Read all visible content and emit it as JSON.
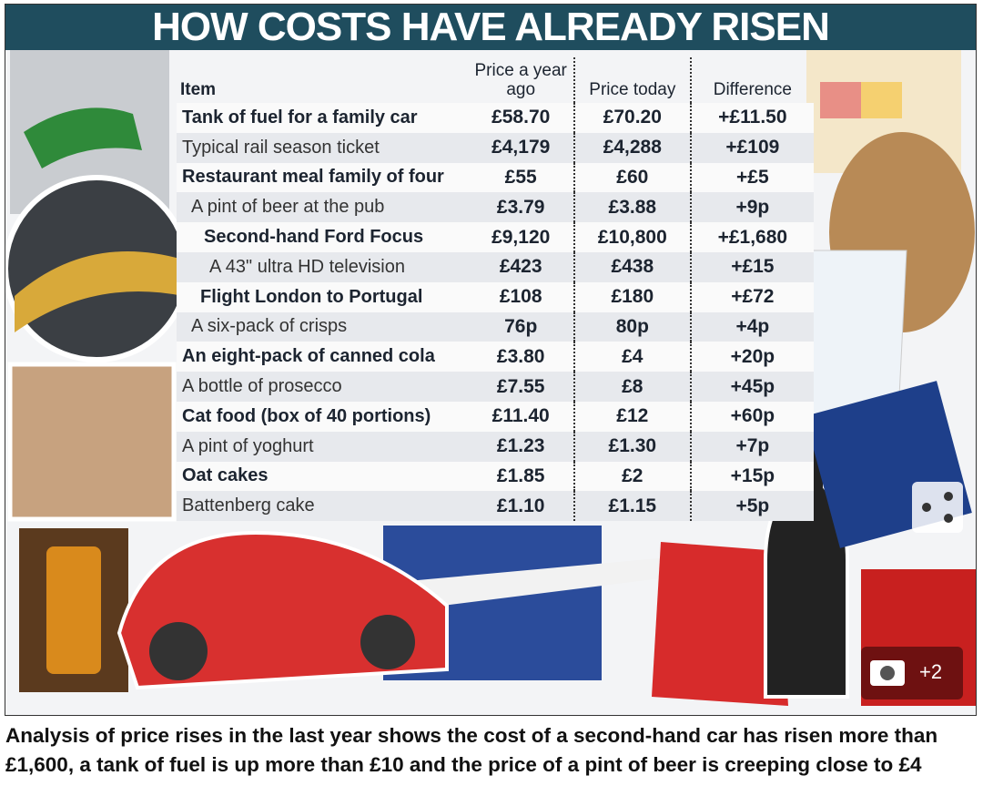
{
  "infographic": {
    "title": "HOW COSTS HAVE ALREADY RISEN",
    "columns": [
      "Item",
      "Price a year ago",
      "Price today",
      "Difference"
    ],
    "rows": [
      [
        "Tank of fuel for a family car",
        "£58.70",
        "£70.20",
        "+£11.50"
      ],
      [
        "Typical rail season ticket",
        "£4,179",
        "£4,288",
        "+£109"
      ],
      [
        "Restaurant meal family of four",
        "£55",
        "£60",
        "+£5"
      ],
      [
        "A pint of beer at the pub",
        "£3.79",
        "£3.88",
        "+9p"
      ],
      [
        "Second-hand Ford Focus",
        "£9,120",
        "£10,800",
        "+£1,680"
      ],
      [
        "A 43\" ultra HD television",
        "£423",
        "£438",
        "+£15"
      ],
      [
        "Flight London to Portugal",
        "£108",
        "£180",
        "+£72"
      ],
      [
        "A six-pack of crisps",
        "76p",
        "80p",
        "+4p"
      ],
      [
        "An eight-pack of canned cola",
        "£3.80",
        "£4",
        "+20p"
      ],
      [
        "A bottle of prosecco",
        "£7.55",
        "£8",
        "+45p"
      ],
      [
        "Cat food (box of 40 portions)",
        "£11.40",
        "£12",
        "+60p"
      ],
      [
        "A pint of yoghurt",
        "£1.23",
        "£1.30",
        "+7p"
      ],
      [
        "Oat cakes",
        "£1.85",
        "£2",
        "+15p"
      ],
      [
        "Battenberg cake",
        "£1.10",
        "£1.15",
        "+5p"
      ]
    ],
    "photo_count": "+2"
  },
  "caption": "Analysis of price rises in the last year shows the cost of a second-hand car has risen more than £1,600, a tank of fuel is up more than £10 and the price of a pint of beer is creeping close to £4"
}
